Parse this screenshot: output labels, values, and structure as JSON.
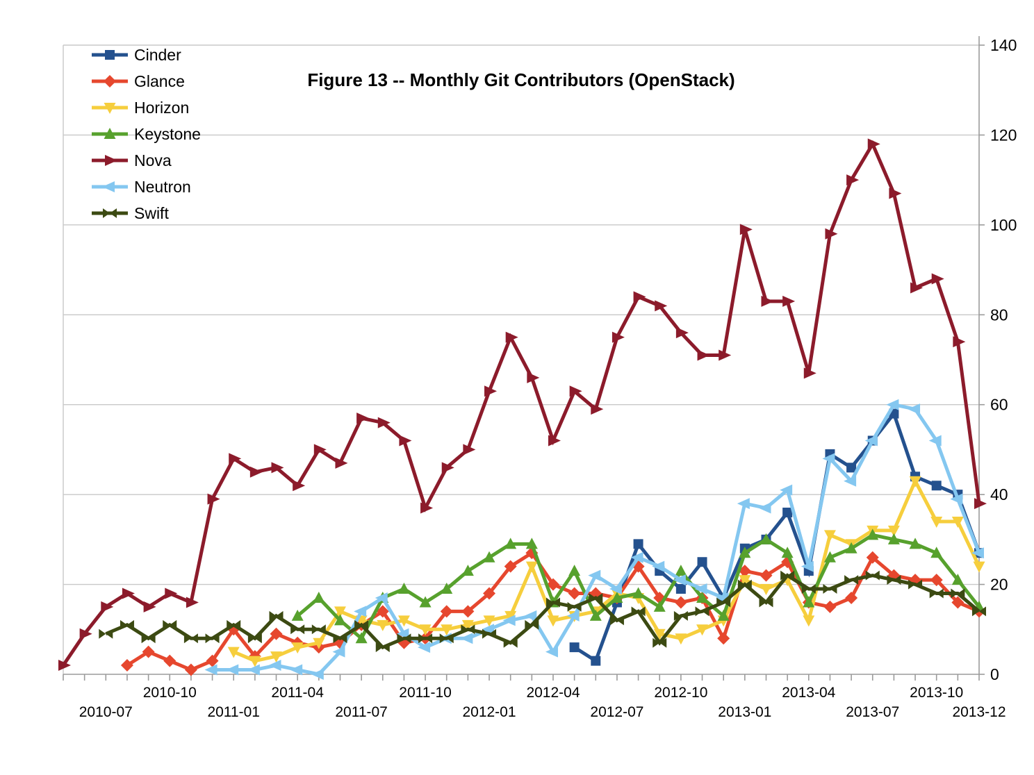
{
  "title": "Figure 13 -- Monthly Git Contributors (OpenStack)",
  "axes": {
    "y_tick_labels": [
      0,
      20,
      40,
      60,
      80,
      100,
      120,
      140
    ],
    "x_tick_labels": [
      {
        "index": 2,
        "label": "2010-07",
        "row": "lower"
      },
      {
        "index": 5,
        "label": "2010-10",
        "row": "upper"
      },
      {
        "index": 8,
        "label": "2011-01",
        "row": "lower"
      },
      {
        "index": 11,
        "label": "2011-04",
        "row": "upper"
      },
      {
        "index": 14,
        "label": "2011-07",
        "row": "lower"
      },
      {
        "index": 17,
        "label": "2011-10",
        "row": "upper"
      },
      {
        "index": 20,
        "label": "2012-01",
        "row": "lower"
      },
      {
        "index": 23,
        "label": "2012-04",
        "row": "upper"
      },
      {
        "index": 26,
        "label": "2012-07",
        "row": "lower"
      },
      {
        "index": 29,
        "label": "2012-10",
        "row": "upper"
      },
      {
        "index": 32,
        "label": "2013-01",
        "row": "lower"
      },
      {
        "index": 35,
        "label": "2013-04",
        "row": "upper"
      },
      {
        "index": 38,
        "label": "2013-07",
        "row": "lower"
      },
      {
        "index": 41,
        "label": "2013-10",
        "row": "upper"
      },
      {
        "index": 43,
        "label": "2013-12",
        "row": "lower"
      }
    ]
  },
  "colors": {
    "grid": "#c8c8c8",
    "axis": "#9b9b9b",
    "text": "#000000"
  },
  "chart_data": {
    "type": "line",
    "title": "Figure 13 -- Monthly Git Contributors (OpenStack)",
    "xlabel": "",
    "ylabel": "",
    "ylim": [
      0,
      140
    ],
    "grid": "horizontal",
    "y_axis_side": "right",
    "legend_position": "top-left",
    "x": [
      "2010-05",
      "2010-06",
      "2010-07",
      "2010-08",
      "2010-09",
      "2010-10",
      "2010-11",
      "2010-12",
      "2011-01",
      "2011-02",
      "2011-03",
      "2011-04",
      "2011-05",
      "2011-06",
      "2011-07",
      "2011-08",
      "2011-09",
      "2011-10",
      "2011-11",
      "2011-12",
      "2012-01",
      "2012-02",
      "2012-03",
      "2012-04",
      "2012-05",
      "2012-06",
      "2012-07",
      "2012-08",
      "2012-09",
      "2012-10",
      "2012-11",
      "2012-12",
      "2013-01",
      "2013-02",
      "2013-03",
      "2013-04",
      "2013-05",
      "2013-06",
      "2013-07",
      "2013-08",
      "2013-09",
      "2013-10",
      "2013-11",
      "2013-12"
    ],
    "series": [
      {
        "name": "Cinder",
        "color": "#24518e",
        "marker": "square",
        "values": [
          null,
          null,
          null,
          null,
          null,
          null,
          null,
          null,
          null,
          null,
          null,
          null,
          null,
          null,
          null,
          null,
          null,
          null,
          null,
          null,
          null,
          null,
          null,
          null,
          6,
          3,
          16,
          29,
          23,
          19,
          25,
          17,
          28,
          30,
          36,
          23,
          49,
          46,
          52,
          58,
          44,
          42,
          40,
          27
        ]
      },
      {
        "name": "Glance",
        "color": "#e6472e",
        "marker": "diamond",
        "values": [
          null,
          null,
          null,
          2,
          5,
          3,
          1,
          3,
          10,
          4,
          9,
          7,
          6,
          7,
          11,
          14,
          7,
          8,
          14,
          14,
          18,
          24,
          27,
          20,
          18,
          18,
          17,
          24,
          17,
          16,
          17,
          8,
          23,
          22,
          25,
          16,
          15,
          17,
          26,
          22,
          21,
          21,
          16,
          14
        ]
      },
      {
        "name": "Horizon",
        "color": "#f6ce3d",
        "marker": "triangle-down",
        "values": [
          null,
          null,
          null,
          null,
          null,
          null,
          null,
          null,
          5,
          3,
          4,
          6,
          7,
          14,
          12,
          11,
          12,
          10,
          10,
          11,
          12,
          13,
          24,
          12,
          13,
          14,
          18,
          17,
          9,
          8,
          10,
          12,
          21,
          19,
          21,
          12,
          31,
          29,
          32,
          32,
          43,
          34,
          34,
          24
        ]
      },
      {
        "name": "Keystone",
        "color": "#57a12d",
        "marker": "triangle-up",
        "values": [
          null,
          null,
          null,
          null,
          null,
          null,
          null,
          null,
          null,
          null,
          null,
          13,
          17,
          12,
          8,
          17,
          19,
          16,
          19,
          23,
          26,
          29,
          29,
          16,
          23,
          13,
          17,
          18,
          15,
          23,
          17,
          13,
          27,
          30,
          27,
          16,
          26,
          28,
          31,
          30,
          29,
          27,
          21,
          15
        ]
      },
      {
        "name": "Nova",
        "color": "#8c1b2b",
        "marker": "triangle-right",
        "values": [
          2,
          9,
          15,
          18,
          15,
          18,
          16,
          39,
          48,
          45,
          46,
          42,
          50,
          47,
          57,
          56,
          52,
          37,
          46,
          50,
          63,
          75,
          66,
          52,
          63,
          59,
          75,
          84,
          82,
          76,
          71,
          71,
          99,
          83,
          83,
          67,
          98,
          110,
          118,
          107,
          86,
          88,
          74,
          38
        ]
      },
      {
        "name": "Neutron",
        "color": "#84c7f0",
        "marker": "triangle-left",
        "values": [
          null,
          null,
          null,
          null,
          null,
          null,
          null,
          1,
          1,
          1,
          2,
          1,
          0,
          5,
          14,
          17,
          9,
          6,
          8,
          8,
          10,
          12,
          13,
          5,
          13,
          22,
          19,
          26,
          24,
          21,
          19,
          17,
          38,
          37,
          41,
          24,
          48,
          43,
          52,
          60,
          59,
          52,
          39,
          27
        ]
      },
      {
        "name": "Swift",
        "color": "#3c4a12",
        "marker": "bowtie",
        "values": [
          null,
          null,
          9,
          11,
          8,
          11,
          8,
          8,
          11,
          8,
          13,
          10,
          10,
          8,
          11,
          6,
          8,
          8,
          8,
          10,
          9,
          7,
          11,
          16,
          15,
          17,
          12,
          14,
          7,
          13,
          14,
          16,
          20,
          16,
          22,
          19,
          19,
          21,
          22,
          21,
          20,
          18,
          18,
          14
        ]
      }
    ]
  }
}
